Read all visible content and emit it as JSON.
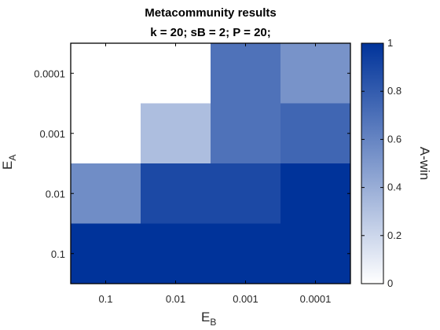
{
  "chart_data": {
    "type": "heatmap",
    "title": "Metacommunity results",
    "subtitle": "k = 20;  sB = 2;  P = 20;",
    "xlabel": {
      "main": "E",
      "sub": "B"
    },
    "ylabel": {
      "main": "E",
      "sub": "A"
    },
    "x_categories": [
      "0.1",
      "0.01",
      "0.001",
      "0.0001"
    ],
    "y_categories": [
      "0.0001",
      "0.001",
      "0.01",
      "0.1"
    ],
    "values": [
      [
        0.0,
        0.0,
        0.69,
        0.53
      ],
      [
        0.0,
        0.32,
        0.69,
        0.75
      ],
      [
        0.56,
        0.89,
        0.89,
        1.0
      ],
      [
        1.0,
        1.0,
        1.0,
        1.0
      ]
    ],
    "colorbar": {
      "label": "A-win",
      "range": [
        0,
        1
      ],
      "ticks": [
        "0",
        "0.2",
        "0.4",
        "0.6",
        "0.8",
        "1"
      ],
      "low_color": "#ffffff",
      "high_color": "#00339a"
    }
  }
}
